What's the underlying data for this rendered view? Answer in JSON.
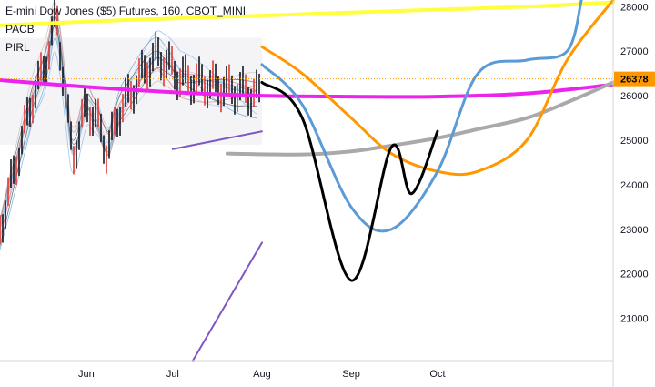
{
  "legend": {
    "title": "E-mini Dow Jones ($5) Futures, 160, CBOT_MINI",
    "indicators": [
      "PACB",
      "PIRL"
    ]
  },
  "colors": {
    "grid": "#e9ecf1",
    "axis_text": "#131722",
    "price_tag_bg": "#ff9800",
    "price_line": "#ff9800",
    "yellow": "#ffff40",
    "magenta": "#ee22ee",
    "gray": "#a9a9a9",
    "orange": "#ff9800",
    "blue": "#5b9bd5",
    "black": "#000000",
    "purple": "#7e57c2",
    "candle": "#131722"
  },
  "chart_data": {
    "type": "line",
    "title": "E-mini Dow Jones ($5) Futures, 160, CBOT_MINI",
    "x_axis": {
      "type": "date",
      "ticks": [
        "Jun",
        "Jul",
        "Aug",
        "Sep",
        "Oct"
      ],
      "tick_dates": [
        "2020-06-01",
        "2020-07-01",
        "2020-08-01",
        "2020-09-01",
        "2020-10-01"
      ],
      "xlim": [
        "2020-05-02",
        "2020-12-01"
      ]
    },
    "y_axis": {
      "ticks": [
        21000,
        22000,
        23000,
        24000,
        25000,
        26000,
        27000,
        28000
      ],
      "ylim": [
        20050,
        28150
      ],
      "side": "right"
    },
    "last_price": 26378,
    "grid": false,
    "series": [
      {
        "color": "#ffff40",
        "x": [
          "2020-05-02",
          "2020-06-15",
          "2020-08-01",
          "2020-09-15",
          "2020-11-01",
          "2020-12-01"
        ],
        "y": [
          27580,
          27700,
          27800,
          27900,
          28000,
          28100
        ]
      },
      {
        "color": "#ee22ee",
        "x": [
          "2020-05-02",
          "2020-06-01",
          "2020-07-01",
          "2020-08-01",
          "2020-09-01",
          "2020-10-01",
          "2020-11-01",
          "2020-12-01"
        ],
        "y": [
          26350,
          26200,
          26080,
          26000,
          25980,
          25980,
          26050,
          26250
        ]
      },
      {
        "color": "#a9a9a9",
        "x": [
          "2020-07-20",
          "2020-08-15",
          "2020-09-01",
          "2020-09-15",
          "2020-10-01",
          "2020-10-15",
          "2020-11-01",
          "2020-11-15",
          "2020-12-01"
        ],
        "y": [
          24700,
          24680,
          24750,
          24880,
          25050,
          25250,
          25500,
          25850,
          26300
        ]
      },
      {
        "color": "#ff9800",
        "x": [
          "2020-08-01",
          "2020-08-15",
          "2020-09-01",
          "2020-09-15",
          "2020-10-01",
          "2020-10-15",
          "2020-11-01",
          "2020-11-15",
          "2020-12-01"
        ],
        "y": [
          27100,
          26500,
          25500,
          24700,
          24300,
          24300,
          25000,
          26800,
          28150
        ]
      },
      {
        "color": "#5b9bd5",
        "x": [
          "2020-08-01",
          "2020-08-15",
          "2020-09-01",
          "2020-09-15",
          "2020-10-01",
          "2020-10-15",
          "2020-11-01",
          "2020-11-15",
          "2020-11-20"
        ],
        "y": [
          26700,
          25800,
          23500,
          23000,
          24300,
          26500,
          26800,
          27000,
          28150
        ]
      },
      {
        "color": "#000000",
        "x": [
          "2020-08-01",
          "2020-08-15",
          "2020-09-01",
          "2020-09-15",
          "2020-09-22",
          "2020-10-01"
        ],
        "y": [
          26300,
          25500,
          21850,
          24850,
          23800,
          25200
        ]
      },
      {
        "color": "#7e57c2",
        "x": [
          "2020-07-01",
          "2020-08-01"
        ],
        "y": [
          24800,
          25200
        ]
      },
      {
        "color": "#7e57c2",
        "x": [
          "2020-07-08",
          "2020-08-01"
        ],
        "y": [
          20050,
          22700
        ]
      }
    ]
  }
}
